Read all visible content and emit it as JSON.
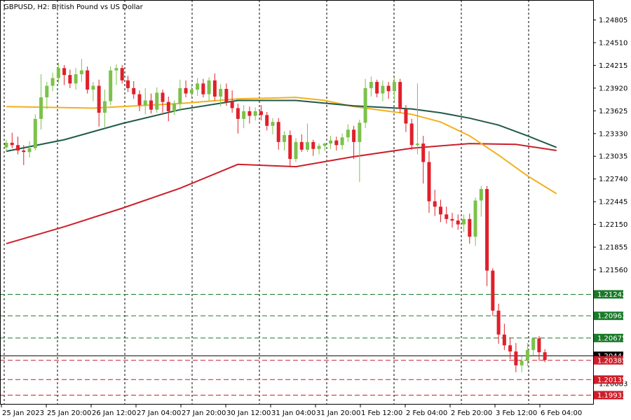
{
  "header": {
    "title": "GBPUSD, H2:  British Pound vs US Dollar"
  },
  "chart_data": {
    "type": "candlestick",
    "symbol": "GBPUSD",
    "timeframe": "H2",
    "title": "GBPUSD, H2:  British Pound vs US Dollar",
    "ylim": [
      1.1975,
      1.2508
    ],
    "grid": true,
    "y_ticks": [
      "1.24805",
      "1.24510",
      "1.24215",
      "1.23920",
      "1.23625",
      "1.23330",
      "1.23035",
      "1.22740",
      "1.22445",
      "1.22150",
      "1.21855",
      "1.21560",
      "1.20083"
    ],
    "x_tick_labels": [
      "25 Jan 2023",
      "25 Jan 20:00",
      "26 Jan 12:00",
      "27 Jan 04:00",
      "27 Jan 20:00",
      "30 Jan 12:00",
      "31 Jan 04:00",
      "31 Jan 20:00",
      "1 Feb 12:00",
      "2 Feb 04:00",
      "2 Feb 20:00",
      "3 Feb 12:00",
      "6 Feb 04:00"
    ],
    "colors": {
      "bull": "#7cc24a",
      "bear": "#e0202a",
      "ma_fast": "#f2b01e",
      "ma_mid": "#1f5a46",
      "ma_slow": "#cc1f2a",
      "support": "#1a7a2a",
      "resistance": "#cc1f2a"
    },
    "candles": [
      [
        1.2315,
        1.2325,
        1.2309,
        1.2321
      ],
      [
        1.2321,
        1.2334,
        1.2314,
        1.2318
      ],
      [
        1.2318,
        1.2329,
        1.2306,
        1.2311
      ],
      [
        1.2311,
        1.2318,
        1.2292,
        1.2309
      ],
      [
        1.2309,
        1.2323,
        1.2302,
        1.2314
      ],
      [
        1.2314,
        1.2358,
        1.2311,
        1.2352
      ],
      [
        1.2352,
        1.241,
        1.2338,
        1.238
      ],
      [
        1.238,
        1.24,
        1.2365,
        1.2395
      ],
      [
        1.2395,
        1.2412,
        1.2388,
        1.2405
      ],
      [
        1.2405,
        1.2425,
        1.2398,
        1.2418
      ],
      [
        1.2418,
        1.2422,
        1.2396,
        1.2409
      ],
      [
        1.2409,
        1.2416,
        1.2392,
        1.2398
      ],
      [
        1.2398,
        1.2418,
        1.239,
        1.241
      ],
      [
        1.241,
        1.243,
        1.24,
        1.2415
      ],
      [
        1.2415,
        1.242,
        1.2385,
        1.239
      ],
      [
        1.239,
        1.24,
        1.2375,
        1.2395
      ],
      [
        1.2395,
        1.2403,
        1.2342,
        1.236
      ],
      [
        1.236,
        1.239,
        1.234,
        1.2375
      ],
      [
        1.2375,
        1.242,
        1.237,
        1.2415
      ],
      [
        1.2415,
        1.2423,
        1.2396,
        1.2418
      ],
      [
        1.2418,
        1.2422,
        1.2398,
        1.2402
      ],
      [
        1.2402,
        1.2408,
        1.2387,
        1.2392
      ],
      [
        1.2392,
        1.2401,
        1.2378,
        1.2384
      ],
      [
        1.2384,
        1.2389,
        1.2362,
        1.237
      ],
      [
        1.237,
        1.2392,
        1.2358,
        1.2376
      ],
      [
        1.2376,
        1.2385,
        1.2359,
        1.2364
      ],
      [
        1.2364,
        1.2393,
        1.236,
        1.2386
      ],
      [
        1.2386,
        1.239,
        1.236,
        1.2374
      ],
      [
        1.2374,
        1.2381,
        1.2349,
        1.2362
      ],
      [
        1.2362,
        1.2376,
        1.2357,
        1.2372
      ],
      [
        1.2372,
        1.2403,
        1.2362,
        1.2392
      ],
      [
        1.2392,
        1.2402,
        1.238,
        1.2385
      ],
      [
        1.2385,
        1.2395,
        1.2379,
        1.239
      ],
      [
        1.239,
        1.2405,
        1.2382,
        1.2398
      ],
      [
        1.2398,
        1.2404,
        1.238,
        1.2384
      ],
      [
        1.2384,
        1.2406,
        1.2376,
        1.2402
      ],
      [
        1.2402,
        1.2411,
        1.2376,
        1.2381
      ],
      [
        1.2381,
        1.2397,
        1.2368,
        1.2391
      ],
      [
        1.2391,
        1.2398,
        1.2369,
        1.2374
      ],
      [
        1.2374,
        1.2389,
        1.236,
        1.2366
      ],
      [
        1.2366,
        1.2372,
        1.2333,
        1.2352
      ],
      [
        1.2352,
        1.237,
        1.234,
        1.2362
      ],
      [
        1.2362,
        1.2368,
        1.2346,
        1.2356
      ],
      [
        1.2356,
        1.2367,
        1.235,
        1.2362
      ],
      [
        1.2362,
        1.237,
        1.235,
        1.2357
      ],
      [
        1.2357,
        1.2361,
        1.2337,
        1.2343
      ],
      [
        1.2343,
        1.2353,
        1.2332,
        1.2348
      ],
      [
        1.2348,
        1.2353,
        1.2312,
        1.2322
      ],
      [
        1.2322,
        1.2336,
        1.2311,
        1.2331
      ],
      [
        1.2331,
        1.2337,
        1.229,
        1.23
      ],
      [
        1.23,
        1.2327,
        1.2296,
        1.2322
      ],
      [
        1.2322,
        1.2332,
        1.2309,
        1.2312
      ],
      [
        1.2312,
        1.2346,
        1.2309,
        1.2322
      ],
      [
        1.2322,
        1.2325,
        1.2304,
        1.2313
      ],
      [
        1.2313,
        1.232,
        1.2306,
        1.2317
      ],
      [
        1.2317,
        1.2321,
        1.231,
        1.232
      ],
      [
        1.232,
        1.233,
        1.2313,
        1.2324
      ],
      [
        1.2324,
        1.2329,
        1.2311,
        1.2318
      ],
      [
        1.2318,
        1.2333,
        1.2312,
        1.2328
      ],
      [
        1.2328,
        1.2345,
        1.2322,
        1.2338
      ],
      [
        1.2338,
        1.2343,
        1.23,
        1.2322
      ],
      [
        1.2322,
        1.2351,
        1.227,
        1.2347
      ],
      [
        1.2347,
        1.2404,
        1.234,
        1.2392
      ],
      [
        1.2392,
        1.2407,
        1.2381,
        1.24
      ],
      [
        1.24,
        1.2403,
        1.238,
        1.2385
      ],
      [
        1.2385,
        1.2402,
        1.2375,
        1.2395
      ],
      [
        1.2395,
        1.24,
        1.2378,
        1.2388
      ],
      [
        1.2388,
        1.2406,
        1.2375,
        1.24
      ],
      [
        1.24,
        1.2404,
        1.236,
        1.2365
      ],
      [
        1.2365,
        1.237,
        1.2335,
        1.2346
      ],
      [
        1.2346,
        1.2352,
        1.2312,
        1.2318
      ],
      [
        1.2318,
        1.2398,
        1.2306,
        1.232
      ],
      [
        1.232,
        1.233,
        1.2268,
        1.2296
      ],
      [
        1.2296,
        1.231,
        1.223,
        1.2245
      ],
      [
        1.2245,
        1.226,
        1.2226,
        1.2238
      ],
      [
        1.2238,
        1.2247,
        1.2218,
        1.2228
      ],
      [
        1.2228,
        1.2238,
        1.2216,
        1.2222
      ],
      [
        1.2222,
        1.223,
        1.2211,
        1.222
      ],
      [
        1.222,
        1.2228,
        1.2208,
        1.2215
      ],
      [
        1.2215,
        1.2228,
        1.2205,
        1.2222
      ],
      [
        1.2222,
        1.2229,
        1.219,
        1.2199
      ],
      [
        1.2199,
        1.225,
        1.2187,
        1.2246
      ],
      [
        1.2246,
        1.2265,
        1.2225,
        1.2261
      ],
      [
        1.2261,
        1.2265,
        1.2135,
        1.2155
      ],
      [
        1.2155,
        1.2158,
        1.2096,
        1.2103
      ],
      [
        1.2103,
        1.2112,
        1.206,
        1.2072
      ],
      [
        1.2072,
        1.2086,
        1.2052,
        1.2058
      ],
      [
        1.2058,
        1.2068,
        1.204,
        1.205
      ],
      [
        1.205,
        1.2061,
        1.2023,
        1.2032
      ],
      [
        1.2032,
        1.2044,
        1.2023,
        1.2038
      ],
      [
        1.2038,
        1.2061,
        1.2031,
        1.2052
      ],
      [
        1.2052,
        1.2068,
        1.2045,
        1.2067
      ],
      [
        1.2067,
        1.207,
        1.2038,
        1.2049
      ],
      [
        1.2049,
        1.2053,
        1.2036,
        1.2039
      ]
    ],
    "ma_fast": [
      [
        0,
        1.2368
      ],
      [
        15,
        1.2366
      ],
      [
        20,
        1.2368
      ],
      [
        30,
        1.2372
      ],
      [
        40,
        1.2378
      ],
      [
        50,
        1.238
      ],
      [
        55,
        1.2376
      ],
      [
        60,
        1.2368
      ],
      [
        65,
        1.2363
      ],
      [
        70,
        1.2358
      ],
      [
        75,
        1.2348
      ],
      [
        80,
        1.233
      ],
      [
        85,
        1.2305
      ],
      [
        90,
        1.2278
      ],
      [
        95,
        1.2255
      ]
    ],
    "ma_mid": [
      [
        0,
        1.231
      ],
      [
        10,
        1.2325
      ],
      [
        20,
        1.2346
      ],
      [
        30,
        1.2364
      ],
      [
        40,
        1.2376
      ],
      [
        50,
        1.2376
      ],
      [
        60,
        1.2369
      ],
      [
        70,
        1.2365
      ],
      [
        75,
        1.236
      ],
      [
        80,
        1.2353
      ],
      [
        85,
        1.2344
      ],
      [
        90,
        1.233
      ],
      [
        95,
        1.2315
      ]
    ],
    "ma_slow": [
      [
        0,
        1.219
      ],
      [
        10,
        1.2212
      ],
      [
        20,
        1.2236
      ],
      [
        30,
        1.2262
      ],
      [
        40,
        1.2293
      ],
      [
        50,
        1.229
      ],
      [
        60,
        1.2303
      ],
      [
        70,
        1.2314
      ],
      [
        80,
        1.232
      ],
      [
        88,
        1.2319
      ],
      [
        95,
        1.2311
      ]
    ],
    "levels": [
      {
        "price": 1.21242,
        "label": "1.21242",
        "kind": "support"
      },
      {
        "price": 1.20963,
        "label": "1.20963",
        "kind": "support"
      },
      {
        "price": 1.20675,
        "label": "1.20675",
        "kind": "support"
      },
      {
        "price": 1.20444,
        "label": "1.20444",
        "kind": "current"
      },
      {
        "price": 1.20385,
        "label": "1.20385",
        "kind": "resistance"
      },
      {
        "price": 1.20135,
        "label": "1.20135",
        "kind": "resistance"
      },
      {
        "price": 1.19933,
        "label": "1.19933",
        "kind": "resistance"
      }
    ]
  }
}
